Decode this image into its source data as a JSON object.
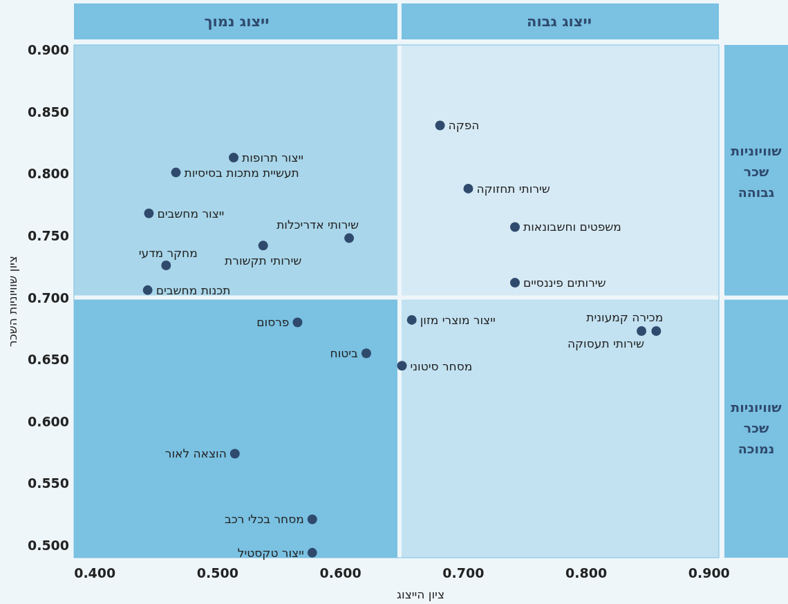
{
  "chart_data": {
    "type": "scatter",
    "xlabel": "ציון הייצוג",
    "ylabel": "ציון שוויוניות השכר",
    "color": "#2f4a6d",
    "marker": "circle",
    "x": [
      0.513,
      0.466,
      0.444,
      0.607,
      0.537,
      0.458,
      0.443,
      0.681,
      0.704,
      0.742,
      0.742,
      0.565,
      0.621,
      0.65,
      0.514,
      0.577,
      0.577,
      0.658,
      0.845,
      0.857
    ],
    "values": [
      0.813,
      0.801,
      0.768,
      0.748,
      0.742,
      0.726,
      0.706,
      0.839,
      0.788,
      0.757,
      0.712,
      0.68,
      0.655,
      0.645,
      0.574,
      0.521,
      0.494,
      0.682,
      0.673,
      0.673
    ],
    "annotations": [
      "ייצוג נמוך",
      "ייצוג גבוה",
      "שוויוניות שכר גבוהה",
      "שוויוניות שכר נמוכה",
      {
        "text": "ייצור תרופות",
        "x": 0.513,
        "y": 0.813
      },
      {
        "text": "תעשיית מתכות בסיסיות",
        "x": 0.466,
        "y": 0.801
      },
      {
        "text": "ייצור מחשבים",
        "x": 0.444,
        "y": 0.768
      },
      {
        "text": "שירותי אדריכלות",
        "x": 0.607,
        "y": 0.748
      },
      {
        "text": "שירותי תקשורת",
        "x": 0.537,
        "y": 0.742
      },
      {
        "text": "מחקר מדעי",
        "x": 0.458,
        "y": 0.726
      },
      {
        "text": "תכנות מחשבים",
        "x": 0.443,
        "y": 0.706
      },
      {
        "text": "הפקה",
        "x": 0.681,
        "y": 0.839
      },
      {
        "text": "שירותי תחזוקה",
        "x": 0.704,
        "y": 0.788
      },
      {
        "text": "משפטים וחשבונאות",
        "x": 0.742,
        "y": 0.757
      },
      {
        "text": "שירותים פיננסיים",
        "x": 0.742,
        "y": 0.712
      },
      {
        "text": "פרסום",
        "x": 0.565,
        "y": 0.68
      },
      {
        "text": "ביטוח",
        "x": 0.621,
        "y": 0.655
      },
      {
        "text": "מסחר סיטוני",
        "x": 0.65,
        "y": 0.645
      },
      {
        "text": "הוצאה לאור",
        "x": 0.514,
        "y": 0.574
      },
      {
        "text": "מסחר בכלי רכב",
        "x": 0.577,
        "y": 0.521
      },
      {
        "text": "ייצור טקסטיל",
        "x": 0.577,
        "y": 0.494
      },
      {
        "text": "ייצור מוצרי מזון",
        "x": 0.658,
        "y": 0.682
      },
      {
        "text": "שירותי תעסוקה",
        "x": 0.845,
        "y": 0.673
      },
      {
        "text": "מכירה קמעונית",
        "x": 0.857,
        "y": 0.673
      }
    ],
    "bands": [
      {
        "axis": "x",
        "from": 0.383,
        "to": 0.648,
        "color": "#a9d6ea"
      },
      {
        "axis": "x",
        "from": 0.383,
        "to": 0.648,
        "color": "#7ac1e2"
      },
      {
        "axis": "x",
        "from": 0.648,
        "to": 0.908,
        "color": "#d6eaf5"
      },
      {
        "axis": "x",
        "from": 0.648,
        "to": 0.908,
        "color": "#c2e1f1"
      }
    ],
    "ref_lines": [
      {
        "axis": "x",
        "value": 0.648,
        "color": "#eef6fa"
      },
      {
        "axis": "y",
        "value": 0.7,
        "color": "#eef6fa"
      }
    ],
    "xlim": [
      0.383,
      0.908
    ],
    "ylim": [
      0.49,
      0.904
    ],
    "xticks": [
      {
        "value": 0.4,
        "label": "0.400"
      },
      {
        "value": 0.5,
        "label": "0.500"
      },
      {
        "value": 0.6,
        "label": "0.600"
      },
      {
        "value": 0.7,
        "label": "0.700"
      },
      {
        "value": 0.8,
        "label": "0.800"
      },
      {
        "value": 0.9,
        "label": "0.900"
      }
    ],
    "yticks": [
      {
        "value": 0.5,
        "label": "0.500"
      },
      {
        "value": 0.55,
        "label": "0.550"
      },
      {
        "value": 0.6,
        "label": "0.600"
      },
      {
        "value": 0.65,
        "label": "0.650"
      },
      {
        "value": 0.7,
        "label": "0.700"
      },
      {
        "value": 0.75,
        "label": "0.750"
      },
      {
        "value": 0.8,
        "label": "0.800"
      },
      {
        "value": 0.85,
        "label": "0.850"
      },
      {
        "value": 0.9,
        "label": "0.900"
      }
    ]
  }
}
